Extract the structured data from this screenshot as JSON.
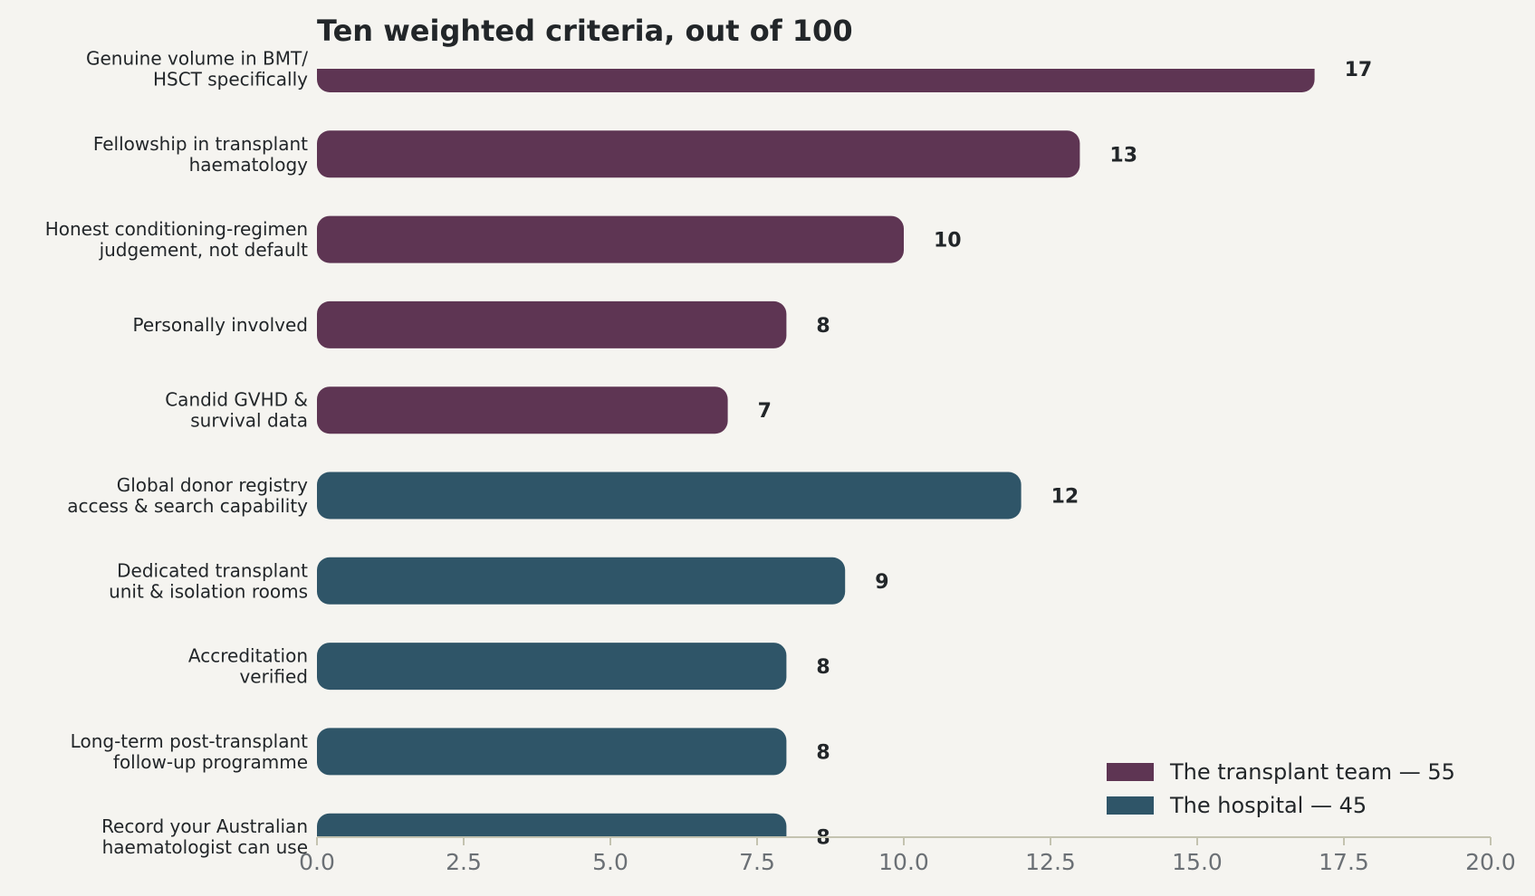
{
  "chart_data": {
    "type": "bar",
    "orientation": "horizontal",
    "title": "Ten weighted criteria, out of 100",
    "xlabel": "",
    "ylabel": "",
    "xlim": [
      0,
      20
    ],
    "xticks": [
      "0.0",
      "2.5",
      "5.0",
      "7.5",
      "10.0",
      "12.5",
      "15.0",
      "17.5",
      "20.0"
    ],
    "grid": false,
    "legend_position": "bottom-right",
    "categories": [
      [
        "Genuine volume in BMT/",
        "HSCT specifically"
      ],
      [
        "Fellowship in transplant",
        "haematology"
      ],
      [
        "Honest conditioning-regimen",
        "judgement, not default"
      ],
      [
        "Personally involved"
      ],
      [
        "Candid GVHD &",
        "survival data"
      ],
      [
        "Global donor registry",
        "access & search capability"
      ],
      [
        "Dedicated transplant",
        "unit & isolation rooms"
      ],
      [
        "Accreditation",
        "verified"
      ],
      [
        "Long-term post-transplant",
        "follow-up programme"
      ],
      [
        "Record your Australian",
        "haematologist can use"
      ]
    ],
    "values": [
      17,
      13,
      10,
      8,
      7,
      12,
      9,
      8,
      8,
      8
    ],
    "value_labels": [
      "17",
      "13",
      "10",
      "8",
      "7",
      "12",
      "9",
      "8",
      "8",
      "8"
    ],
    "groups": [
      0,
      0,
      0,
      0,
      0,
      1,
      1,
      1,
      1,
      1
    ],
    "series": [
      {
        "name": "The transplant team — 55",
        "color": "#5e3553"
      },
      {
        "name": "The hospital — 45",
        "color": "#2f5568"
      }
    ]
  }
}
